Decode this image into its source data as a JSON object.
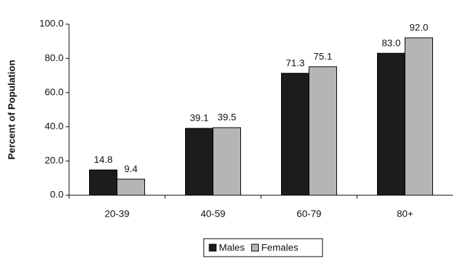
{
  "chart_data": {
    "type": "bar",
    "y_label": "Percent of Population",
    "categories": [
      "20-39",
      "40-59",
      "60-79",
      "80+"
    ],
    "series": [
      {
        "name": "Males",
        "color": "#1c1c1c",
        "values": [
          14.8,
          39.1,
          71.3,
          83.0
        ],
        "value_labels": [
          "14.8",
          "39.1",
          "71.3",
          "83.0"
        ]
      },
      {
        "name": "Females",
        "color": "#b5b5b5",
        "values": [
          9.4,
          39.5,
          75.1,
          92.0
        ],
        "value_labels": [
          "9.4",
          "39.5",
          "75.1",
          "92.0"
        ]
      }
    ],
    "ylim": [
      0,
      100
    ],
    "yticks": [
      {
        "value": 0,
        "label": "0.0"
      },
      {
        "value": 20,
        "label": "20.0"
      },
      {
        "value": 40,
        "label": "40.0"
      },
      {
        "value": 60,
        "label": "60.0"
      },
      {
        "value": 80,
        "label": "80.0"
      },
      {
        "value": 100,
        "label": "100.0"
      }
    ],
    "legend": "bottom"
  }
}
